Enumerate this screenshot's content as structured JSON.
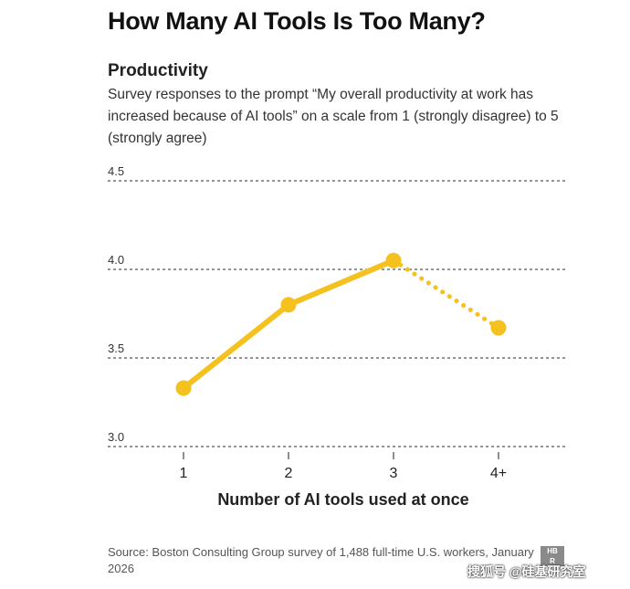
{
  "header": {
    "title": "How Many AI Tools Is Too Many?",
    "subtitle": "Productivity",
    "description": "Survey responses to the prompt “My overall productivity at work has increased because of AI tools” on a scale from 1 (strongly disagree) to 5 (strongly agree)"
  },
  "chart_data": {
    "type": "line",
    "title": "Productivity",
    "xlabel": "Number of AI tools used at once",
    "ylabel": "",
    "categories": [
      "1",
      "2",
      "3",
      "4+"
    ],
    "values": [
      3.33,
      3.8,
      4.05,
      3.67
    ],
    "dotted_segment_from_index": 2,
    "ylim": [
      3.0,
      4.5
    ],
    "yticks": [
      "4.5",
      "4.0",
      "3.5",
      "3.0"
    ],
    "grid": true,
    "line_color": "#F5C11E"
  },
  "footer": {
    "source": "Source: Boston Consulting Group survey of 1,488 full-time U.S. workers, January 2026",
    "logo": "HBR",
    "watermark": "搜狐号 @硅基研究室"
  }
}
